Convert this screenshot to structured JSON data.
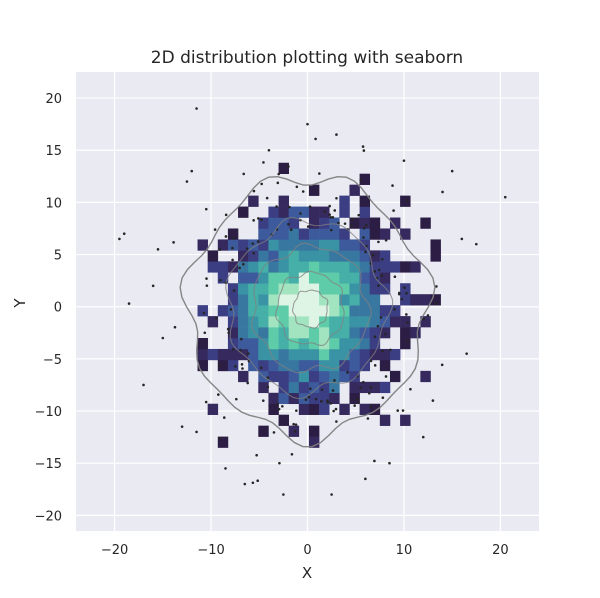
{
  "chart_data": {
    "type": "heatmap",
    "title": "2D distribution plotting with seaborn",
    "xlabel": "X",
    "ylabel": "Y",
    "xlim": [
      -24,
      24
    ],
    "ylim": [
      -21.5,
      22.5
    ],
    "xticks": [
      -20,
      -10,
      0,
      10,
      20
    ],
    "yticks": [
      -20,
      -15,
      -10,
      -5,
      0,
      5,
      10,
      15,
      20
    ],
    "grid": true,
    "background": "#eaeaf2",
    "grid_color": "#ffffff",
    "palette": [
      "#2c1d44",
      "#35295e",
      "#3b3e83",
      "#3c5a9c",
      "#38779f",
      "#3a93a5",
      "#45afa8",
      "#5fcca9",
      "#a3e4c0",
      "#def5e5"
    ],
    "scatter_color": "#262626",
    "contour_color": "#808080",
    "distribution": {
      "kind": "bivariate normal",
      "center": [
        0,
        0
      ],
      "std": [
        5,
        5
      ],
      "histogram_bin_width": 1.05
    },
    "contour_levels": [
      {
        "level": "outer",
        "radius": 12.3
      },
      {
        "level": "middle",
        "radius": 8.2
      },
      {
        "level": "inner-1",
        "radius": 6.0
      },
      {
        "level": "inner-2",
        "radius": 3.5
      },
      {
        "level": "inner-3",
        "radius": 1.8
      }
    ],
    "outlier_points": [
      [
        -19.5,
        6.5
      ],
      [
        -19,
        7
      ],
      [
        -18.5,
        0.3
      ],
      [
        -17,
        -7.5
      ],
      [
        -15.5,
        5.5
      ],
      [
        -11.5,
        19
      ],
      [
        -12.5,
        12
      ],
      [
        -11.5,
        -12
      ],
      [
        -15,
        -3
      ],
      [
        -16,
        2
      ],
      [
        -13,
        -11.5
      ],
      [
        -12,
        13
      ],
      [
        20.5,
        10.5
      ],
      [
        17.5,
        6
      ],
      [
        16,
        6.5
      ],
      [
        15,
        13
      ],
      [
        16.5,
        -4.5
      ],
      [
        13,
        -9
      ],
      [
        12,
        -12.5
      ],
      [
        14,
        11
      ],
      [
        0,
        17.5
      ],
      [
        -8.5,
        -15.5
      ],
      [
        -2.5,
        -18
      ],
      [
        2.5,
        -18
      ],
      [
        8.5,
        -15
      ],
      [
        -6.5,
        -17
      ],
      [
        6,
        -16.5
      ],
      [
        3,
        16.5
      ],
      [
        -4,
        15
      ],
      [
        10,
        14
      ]
    ]
  }
}
